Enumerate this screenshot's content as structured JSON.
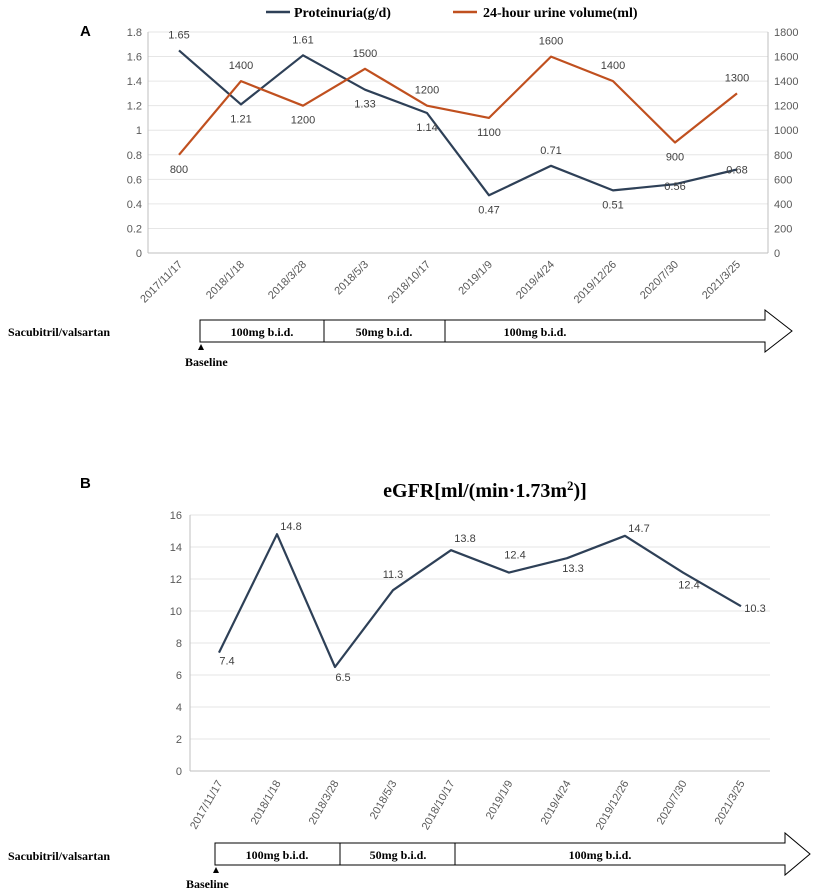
{
  "chart_data": [
    {
      "type": "line",
      "panel_label": "A",
      "title": "",
      "categories": [
        "2017/11/17",
        "2018/1/18",
        "2018/3/28",
        "2018/5/3",
        "2018/10/17",
        "2019/1/9",
        "2019/4/24",
        "2019/12/26",
        "2020/7/30",
        "2021/3/25"
      ],
      "series": [
        {
          "name": "Proteinuria(g/d)",
          "axis": "left",
          "color": "#2e4057",
          "values": [
            1.65,
            1.21,
            1.61,
            1.33,
            1.14,
            0.47,
            0.71,
            0.51,
            0.56,
            0.68
          ],
          "labels": [
            "1.65",
            "1.21",
            "1.61",
            "1.33",
            "1.14",
            "0.47",
            "0.71",
            "0.51",
            "0.56",
            "0.68"
          ]
        },
        {
          "name": "24-hour urine volume(ml)",
          "axis": "right",
          "color": "#c0501f",
          "values": [
            800,
            1400,
            1200,
            1500,
            1200,
            1100,
            1600,
            1400,
            900,
            1300
          ],
          "labels": [
            "800",
            "1400",
            "1200",
            "1500",
            "1200",
            "1100",
            "1600",
            "1400",
            "900",
            "1300"
          ]
        }
      ],
      "ylim": [
        0,
        1.8
      ],
      "yticks": [
        "0",
        "0.2",
        "0.4",
        "0.6",
        "0.8",
        "1",
        "1.2",
        "1.4",
        "1.6",
        "1.8"
      ],
      "y2lim": [
        0,
        1800
      ],
      "y2ticks": [
        "0",
        "200",
        "400",
        "600",
        "800",
        "1000",
        "1200",
        "1400",
        "1600",
        "1800"
      ],
      "legend": "top"
    },
    {
      "type": "line",
      "panel_label": "B",
      "title": "eGFR[ml/(min·1.73m²)]",
      "categories": [
        "2017/11/17",
        "2018/1/18",
        "2018/3/28",
        "2018/5/3",
        "2018/10/17",
        "2019/1/9",
        "2019/4/24",
        "2019/12/26",
        "2020/7/30",
        "2021/3/25"
      ],
      "series": [
        {
          "name": "eGFR",
          "color": "#2e4057",
          "values": [
            7.4,
            14.8,
            6.5,
            11.3,
            13.8,
            12.4,
            13.3,
            14.7,
            12.4,
            10.3
          ],
          "labels": [
            "7.4",
            "14.8",
            "6.5",
            "11.3",
            "13.8",
            "12.4",
            "13.3",
            "14.7",
            "12.4",
            "10.3"
          ]
        }
      ],
      "ylim": [
        0,
        16
      ],
      "yticks": [
        "0",
        "2",
        "4",
        "6",
        "8",
        "10",
        "12",
        "14",
        "16"
      ]
    }
  ],
  "treatment": {
    "drug_label": "Sacubitril/valsartan",
    "baseline_label": "Baseline",
    "segments": [
      "100mg b.i.d.",
      "50mg b.i.d.",
      "100mg b.i.d."
    ]
  },
  "title_b_parts": {
    "main": "eGFR[ml/(min·1.73m",
    "sup": "2",
    "close": ")]"
  }
}
